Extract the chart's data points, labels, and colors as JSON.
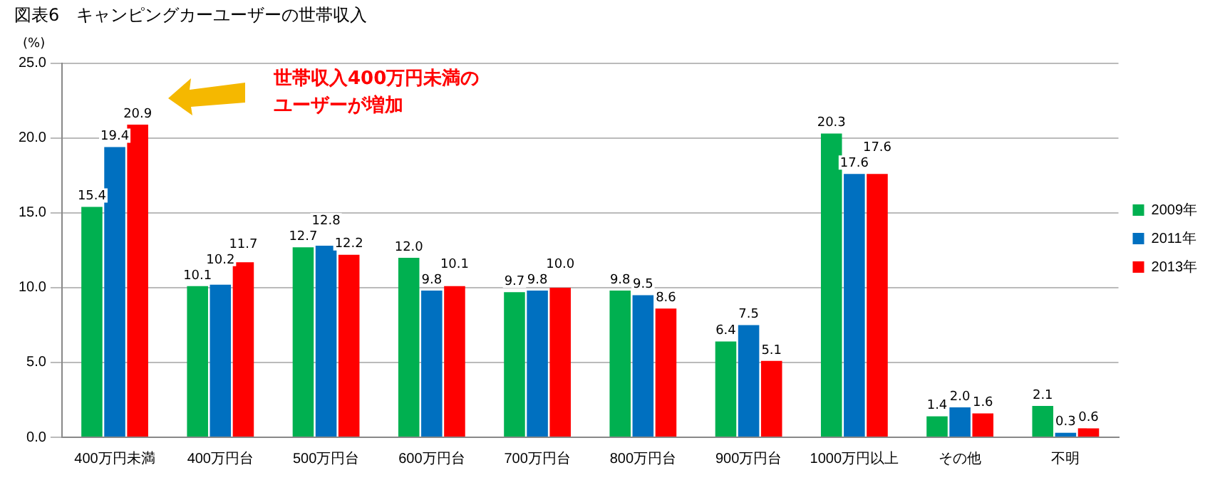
{
  "chart_data": {
    "type": "bar",
    "title": "図表6　キャンピングカーユーザーの世帯収入",
    "ylabel": "(%)",
    "categories": [
      "400万円未満",
      "400万円台",
      "500万円台",
      "600万円台",
      "700万円台",
      "800万円台",
      "900万円台",
      "1000万円以上",
      "その他",
      "不明"
    ],
    "series": [
      {
        "name": "2009年",
        "color": "#00b050",
        "values": [
          15.4,
          10.1,
          12.7,
          12.0,
          9.7,
          9.8,
          6.4,
          20.3,
          1.4,
          2.1
        ],
        "value_labels": [
          "15.4",
          "10.1",
          "12.7",
          "12.0",
          "9.7",
          "9.8",
          "6.4",
          "20.3",
          "1.4",
          "2.1"
        ]
      },
      {
        "name": "2011年",
        "color": "#0070c0",
        "values": [
          19.4,
          10.2,
          12.8,
          9.8,
          9.8,
          9.5,
          7.5,
          17.6,
          2.0,
          0.3
        ],
        "value_labels": [
          "19.4",
          "10.2",
          "12.8",
          "9.8",
          "9.8",
          "9.5",
          "7.5",
          "17.6",
          "2.0",
          "0.3"
        ]
      },
      {
        "name": "2013年",
        "color": "#ff0000",
        "values": [
          20.9,
          11.7,
          12.2,
          10.1,
          10.0,
          8.6,
          5.1,
          17.6,
          1.6,
          0.6
        ],
        "value_labels": [
          "20.9",
          "11.7",
          "12.2",
          "10.1",
          "10.0",
          "8.6",
          "5.1",
          "17.6",
          "1.6",
          "0.6"
        ]
      }
    ],
    "ylim": [
      0,
      25
    ],
    "yticks": [
      {
        "value": 0,
        "label": "0.0"
      },
      {
        "value": 5,
        "label": "5.0"
      },
      {
        "value": 10,
        "label": "10.0"
      },
      {
        "value": 15,
        "label": "15.0"
      },
      {
        "value": 20,
        "label": "20.0"
      },
      {
        "value": 25,
        "label": "25.0"
      }
    ],
    "grid": "y",
    "legend": "right",
    "annotations": [
      "世帯収入400万円未満のユーザーが増加"
    ]
  }
}
